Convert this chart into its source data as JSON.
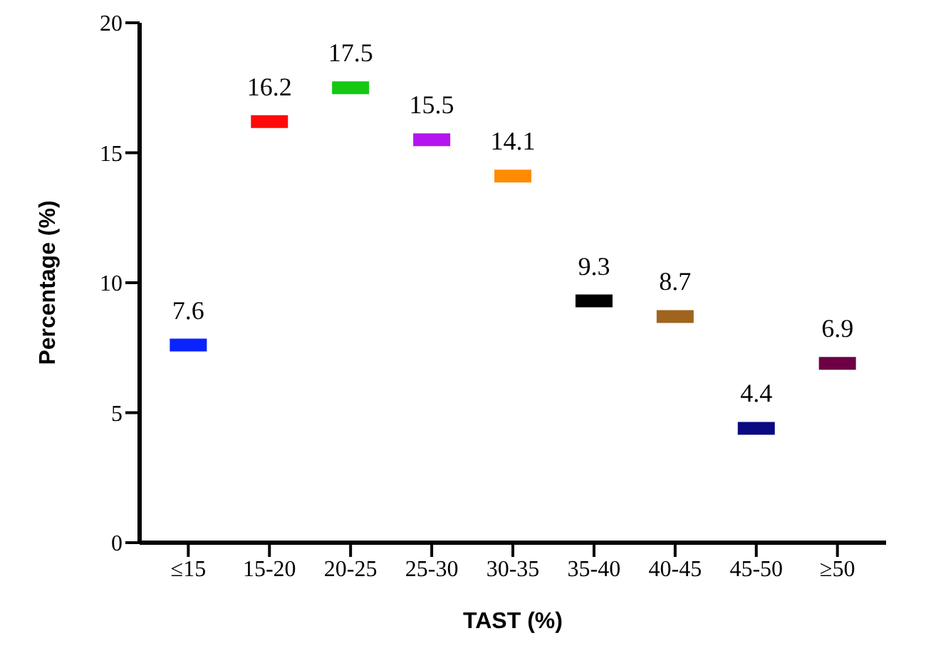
{
  "chart_data": {
    "type": "scatter",
    "xlabel": "TAST (%)",
    "ylabel": "Percentage (%)",
    "categories": [
      "≤15",
      "15-20",
      "20-25",
      "25-30",
      "30-35",
      "35-40",
      "40-45",
      "45-50",
      "≥50"
    ],
    "values": [
      7.6,
      16.2,
      17.5,
      15.5,
      14.1,
      9.3,
      8.7,
      4.4,
      6.9
    ],
    "colors": [
      "#0a24ff",
      "#ff0a0a",
      "#14c814",
      "#b414f0",
      "#ff8c00",
      "#000000",
      "#a0641e",
      "#0a0a82",
      "#6e0046"
    ],
    "ylim": [
      0,
      20
    ],
    "yticks": [
      0,
      5,
      10,
      15,
      20
    ],
    "grid": false,
    "legend": false,
    "data_labels": true
  }
}
